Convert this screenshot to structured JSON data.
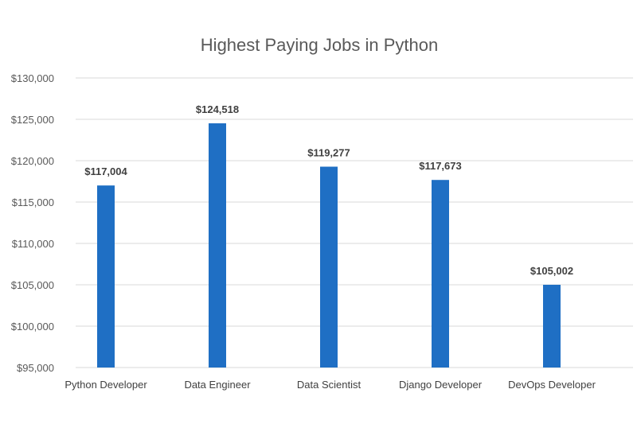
{
  "chart_data": {
    "type": "bar",
    "title": "Highest Paying Jobs in Python",
    "categories": [
      "Python Developer",
      "Data Engineer",
      "Data Scientist",
      "Django Developer",
      "DevOps Developer"
    ],
    "values": [
      117004,
      124518,
      119277,
      117673,
      105002
    ],
    "data_labels": [
      "$117,004",
      "$124,518",
      "$119,277",
      "$117,673",
      "$105,002"
    ],
    "y_ticks": [
      95000,
      100000,
      105000,
      110000,
      115000,
      120000,
      125000,
      130000
    ],
    "y_tick_labels": [
      "$95,000",
      "$100,000",
      "$105,000",
      "$110,000",
      "$115,000",
      "$120,000",
      "$125,000",
      "$130,000"
    ],
    "ylim": [
      95000,
      130000
    ],
    "xlabel": "",
    "ylabel": "",
    "grid": true,
    "legend": "none",
    "bar_color": "#1F6FC4",
    "grid_color": "#D9D9D9"
  }
}
